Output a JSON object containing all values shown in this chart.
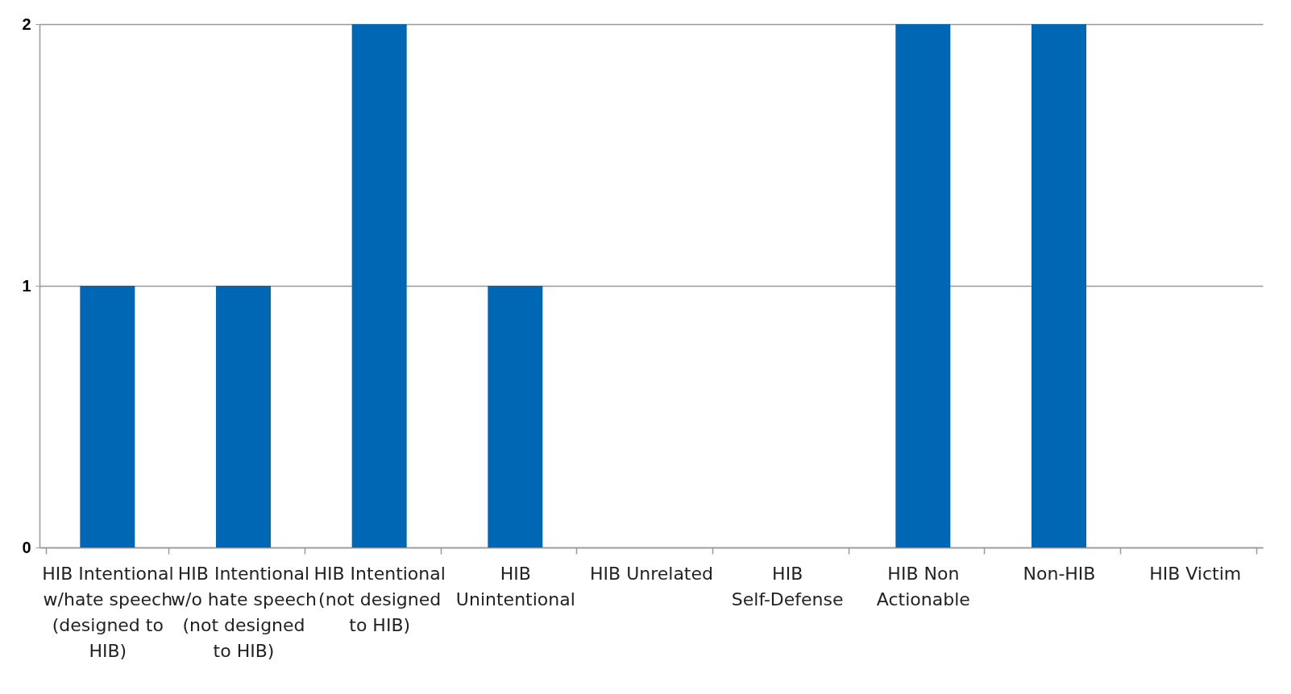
{
  "chart_data": {
    "type": "bar",
    "categories": [
      "HIB Intentional w/hate speech (designed to HIB)",
      "HIB Intentional w/o hate speech (not designed to HIB)",
      "HIB Intentional (not designed to HIB)",
      "HIB Unintentional",
      "HIB Unrelated",
      "HIB Self-Defense",
      "HIB Non Actionable",
      "Non-HIB",
      "HIB Victim"
    ],
    "values": [
      1,
      1,
      2,
      1,
      0,
      0,
      2,
      2,
      0
    ],
    "color": "#0067b4",
    "ylim": [
      0,
      2
    ],
    "yticks": [
      0,
      1,
      2
    ],
    "grid": "y"
  }
}
